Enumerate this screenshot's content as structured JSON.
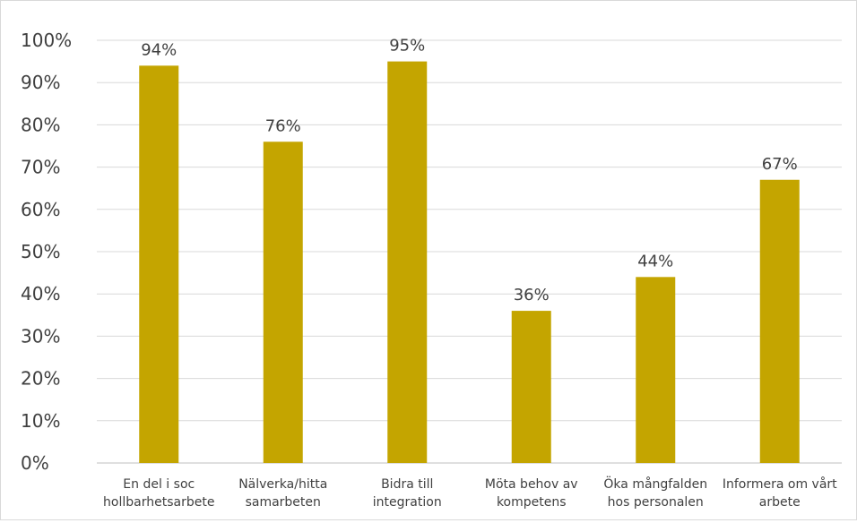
{
  "chart_data": {
    "type": "bar",
    "title": "",
    "xlabel": "",
    "ylabel": "",
    "ylim": [
      0,
      100
    ],
    "yticks": [
      0,
      10,
      20,
      30,
      40,
      50,
      60,
      70,
      80,
      90,
      100
    ],
    "ytick_suffix": "%",
    "grid": true,
    "legend": "none",
    "bar_color": "#c4a500",
    "categories": [
      [
        "En del i soc",
        "hollbarhetsarbete"
      ],
      [
        "Nälverka/hitta",
        "samarbeten"
      ],
      [
        "Bidra till",
        "integration"
      ],
      [
        "Möta behov av",
        "kompetens"
      ],
      [
        "Öka mångfalden",
        "hos personalen"
      ],
      [
        "Informera om vårt",
        "arbete"
      ]
    ],
    "values": [
      94,
      76,
      95,
      36,
      44,
      67
    ],
    "data_labels": [
      "94%",
      "76%",
      "95%",
      "36%",
      "44%",
      "67%"
    ]
  }
}
